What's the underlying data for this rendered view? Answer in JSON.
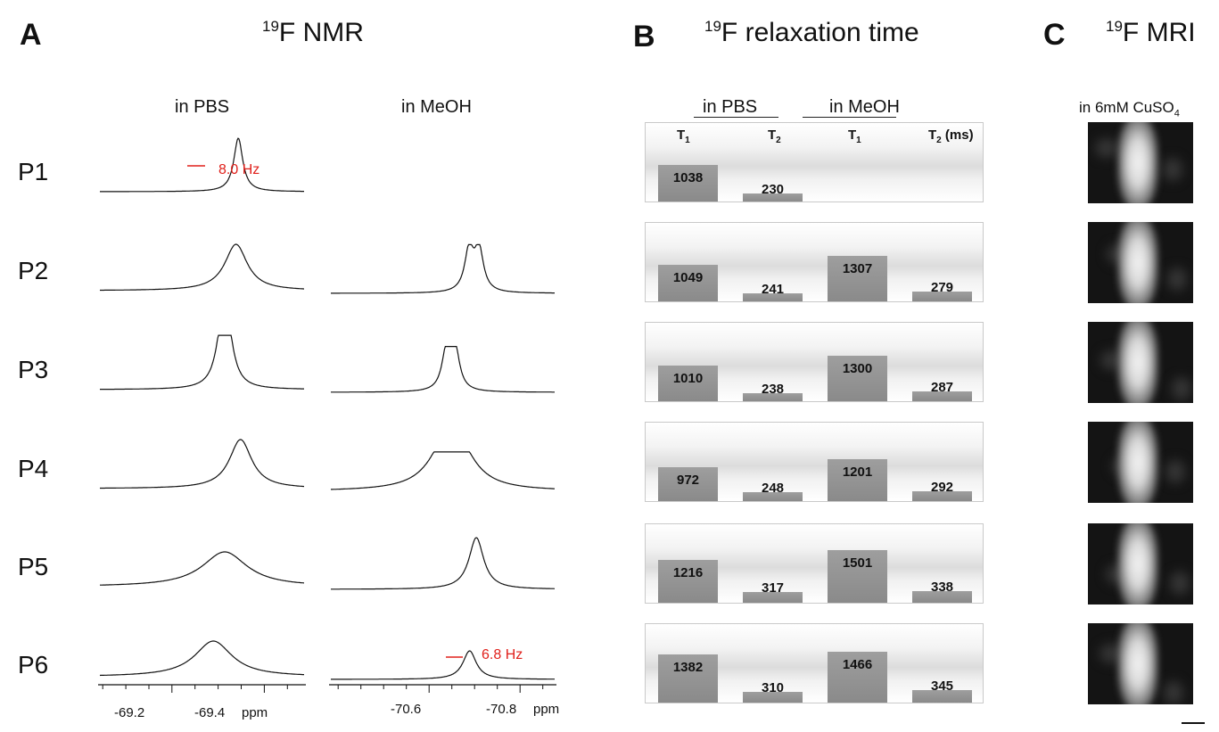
{
  "panels": {
    "a": {
      "letter": "A",
      "title_sup": "19",
      "title_rest": "F NMR"
    },
    "b": {
      "letter": "B",
      "title_sup": "19",
      "title_rest": "F relaxation time"
    },
    "c": {
      "letter": "C",
      "title_sup": "19",
      "title_rest": "F MRI"
    }
  },
  "nmr_headers": {
    "pbs": "in PBS",
    "meoh": "in MeOH"
  },
  "relax_headers": {
    "pbs": "in PBS",
    "meoh": "in MeOH"
  },
  "mri_header": {
    "prefix": "in 6mM CuSO",
    "sub": "4"
  },
  "rows": [
    "P1",
    "P2",
    "P3",
    "P4",
    "P5",
    "P6"
  ],
  "relax_cols": {
    "t1_pbs": "T",
    "t2_pbs": "T",
    "t1_meoh": "T",
    "t2_meoh": "T",
    "sub1": "1",
    "sub2": "2",
    "units": " (ms)"
  },
  "annotations": {
    "p1_pbs_width": "8.0 Hz",
    "p6_meoh_width": "6.8 Hz"
  },
  "chart_data": [
    {
      "type": "line",
      "title": "19F NMR",
      "series_groups": [
        "in PBS",
        "in MeOH"
      ],
      "rows": [
        "P1",
        "P2",
        "P3",
        "P4",
        "P5",
        "P6"
      ],
      "pbs_axis": {
        "ticks": [
          "-69.2",
          "-69.4"
        ],
        "unit": "ppm",
        "range": [
          -69.04,
          -69.49
        ]
      },
      "meoh_axis": {
        "ticks": [
          "-70.6",
          "-70.8"
        ],
        "unit": "ppm",
        "range": [
          -70.38,
          -70.88
        ]
      },
      "pbs_peaks": [
        {
          "center": -69.345,
          "width": 0.012,
          "split": 0
        },
        {
          "center": -69.34,
          "width": 0.03,
          "split": 0
        },
        {
          "center": -69.315,
          "width": 0.016,
          "split": 0.012
        },
        {
          "center": -69.35,
          "width": 0.03,
          "split": 0
        },
        {
          "center": -69.315,
          "width": 0.06,
          "split": 0
        },
        {
          "center": -69.29,
          "width": 0.05,
          "split": 0
        }
      ],
      "meoh_peaks": [
        null,
        {
          "center": -70.7,
          "width": 0.012,
          "split": 0.022
        },
        {
          "center": -70.648,
          "width": 0.012,
          "split": 0.02
        },
        {
          "center": -70.65,
          "width": 0.045,
          "split": 0.03
        },
        {
          "center": -70.705,
          "width": 0.02,
          "split": 0
        },
        {
          "center": -70.69,
          "width": 0.018,
          "split": 0
        }
      ],
      "linewidth_annotations": [
        "8.0 Hz",
        "6.8 Hz"
      ]
    },
    {
      "type": "bar",
      "title": "19F relaxation time",
      "unit": "ms",
      "categories": [
        "P1",
        "P2",
        "P3",
        "P4",
        "P5",
        "P6"
      ],
      "series": [
        {
          "name": "T1 in PBS",
          "values": [
            1038,
            1049,
            1010,
            972,
            1216,
            1382
          ]
        },
        {
          "name": "T2 in PBS",
          "values": [
            230,
            241,
            238,
            248,
            317,
            310
          ]
        },
        {
          "name": "T1 in MeOH",
          "values": [
            null,
            1307,
            1300,
            1201,
            1501,
            1466
          ]
        },
        {
          "name": "T2 in MeOH",
          "values": [
            null,
            279,
            287,
            292,
            338,
            345
          ]
        }
      ]
    }
  ]
}
